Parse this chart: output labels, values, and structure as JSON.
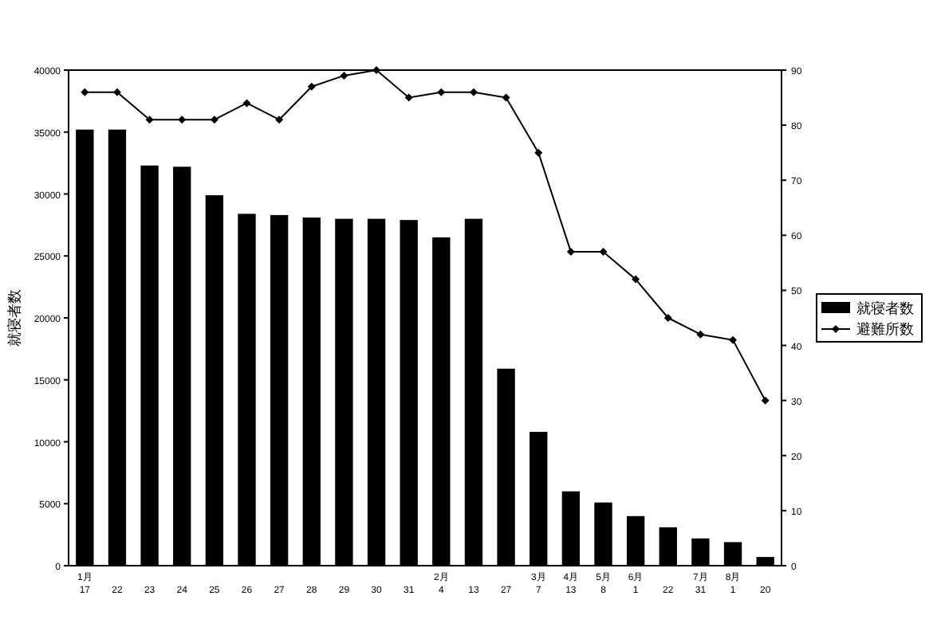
{
  "chart_data": {
    "type": "bar",
    "ylabel": "就寝者数",
    "categories": [
      "1月\n17",
      "22",
      "23",
      "24",
      "25",
      "26",
      "27",
      "28",
      "29",
      "30",
      "31",
      "2月\n4",
      "13",
      "27",
      "3月\n7",
      "4月\n13",
      "5月\n8",
      "6月\n1",
      "22",
      "7月\n31",
      "8月\n1",
      "20"
    ],
    "series": [
      {
        "name": "就寝者数",
        "color": "#000000",
        "values": [
          35200,
          35200,
          32300,
          32200,
          29900,
          28400,
          28300,
          28100,
          28000,
          28000,
          27900,
          26500,
          28000,
          15900,
          10800,
          6000,
          5100,
          4000,
          3100,
          2200,
          1900,
          700
        ]
      },
      {
        "name": "避難所数",
        "type": "line",
        "axis": "y2",
        "color": "#000000",
        "marker": "diamond",
        "values": [
          86,
          86,
          81,
          81,
          81,
          84,
          81,
          87,
          89,
          90,
          85,
          86,
          86,
          85,
          75,
          57,
          57,
          52,
          45,
          42,
          41,
          30
        ]
      }
    ],
    "ylim": [
      0,
      40000
    ],
    "yticks": [
      0,
      5000,
      10000,
      15000,
      20000,
      25000,
      30000,
      35000,
      40000
    ],
    "y2lim": [
      0,
      90
    ],
    "y2ticks": [
      0,
      10,
      20,
      30,
      40,
      50,
      60,
      70,
      80,
      90
    ],
    "legend": "right"
  }
}
